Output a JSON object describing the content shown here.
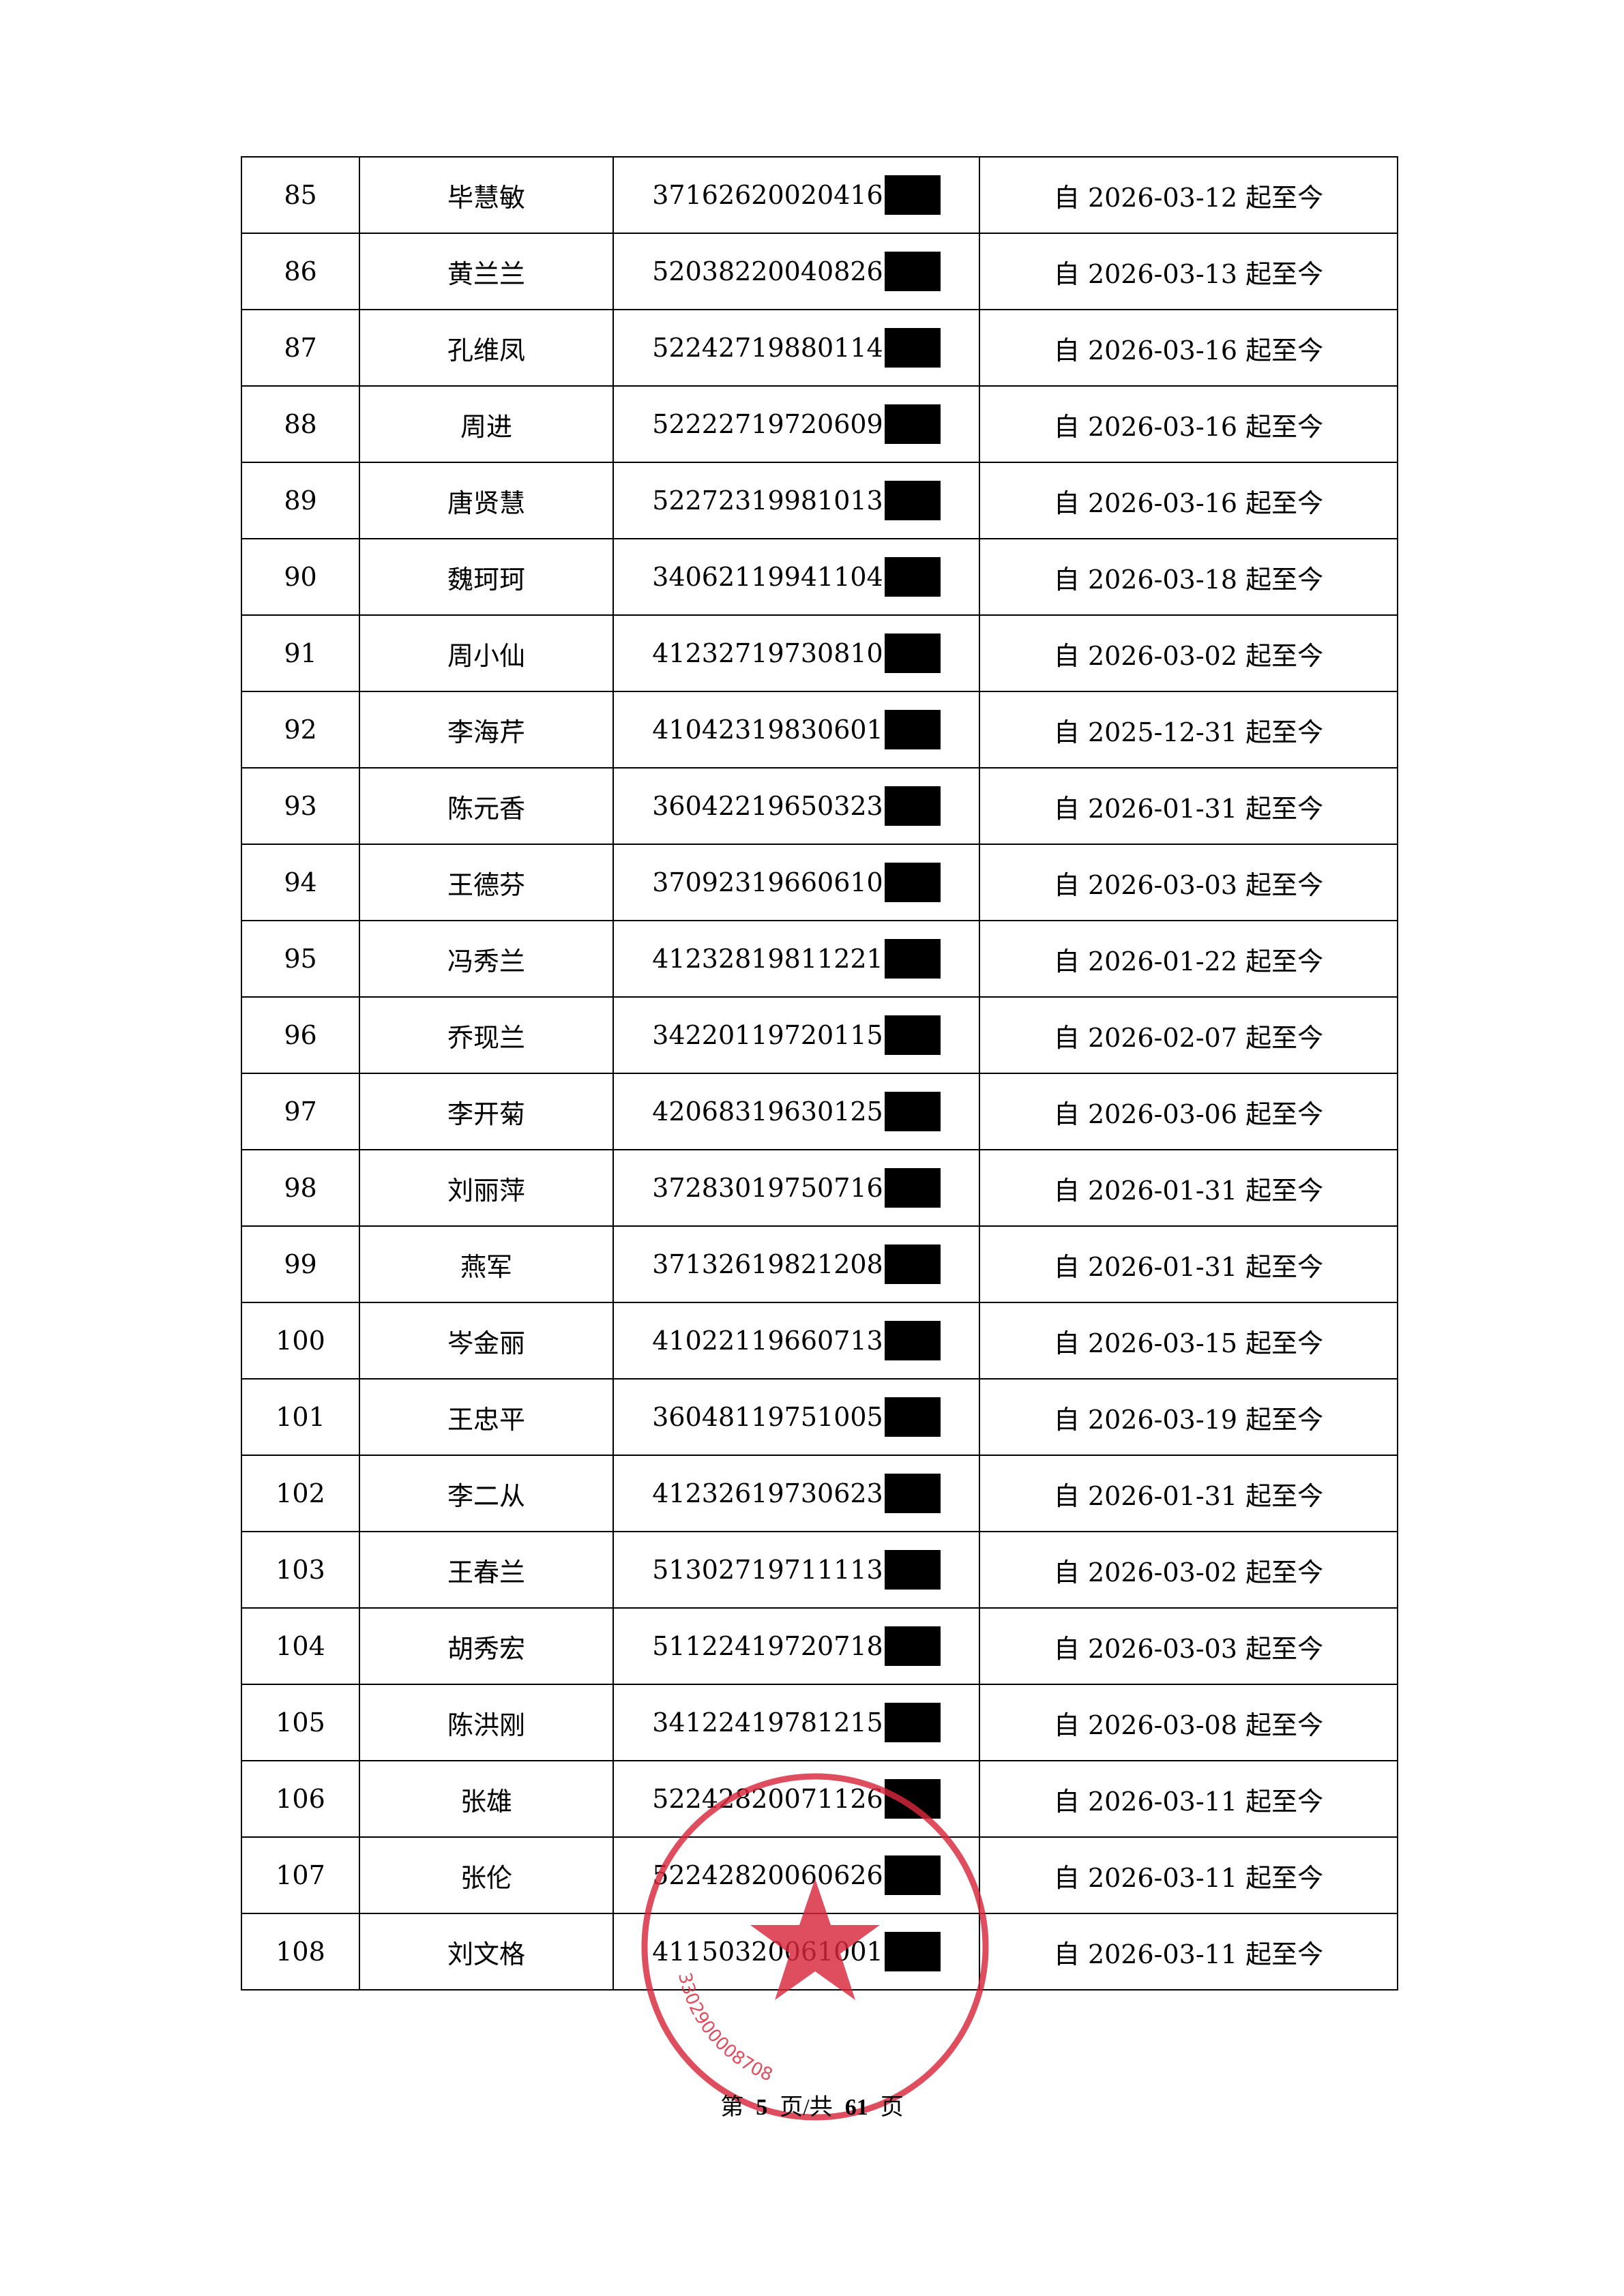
{
  "rows": [
    {
      "no": "85",
      "name": "毕慧敏",
      "id": "37162620020416",
      "period": "自 2026-03-12 起至今"
    },
    {
      "no": "86",
      "name": "黄兰兰",
      "id": "52038220040826",
      "period": "自 2026-03-13 起至今"
    },
    {
      "no": "87",
      "name": "孔维凤",
      "id": "52242719880114",
      "period": "自 2026-03-16 起至今"
    },
    {
      "no": "88",
      "name": "周进",
      "id": "52222719720609",
      "period": "自 2026-03-16 起至今"
    },
    {
      "no": "89",
      "name": "唐贤慧",
      "id": "52272319981013",
      "period": "自 2026-03-16 起至今"
    },
    {
      "no": "90",
      "name": "魏珂珂",
      "id": "34062119941104",
      "period": "自 2026-03-18 起至今"
    },
    {
      "no": "91",
      "name": "周小仙",
      "id": "41232719730810",
      "period": "自 2026-03-02 起至今"
    },
    {
      "no": "92",
      "name": "李海芹",
      "id": "41042319830601",
      "period": "自 2025-12-31 起至今"
    },
    {
      "no": "93",
      "name": "陈元香",
      "id": "36042219650323",
      "period": "自 2026-01-31 起至今"
    },
    {
      "no": "94",
      "name": "王德芬",
      "id": "37092319660610",
      "period": "自 2026-03-03 起至今"
    },
    {
      "no": "95",
      "name": "冯秀兰",
      "id": "41232819811221",
      "period": "自 2026-01-22 起至今"
    },
    {
      "no": "96",
      "name": "乔现兰",
      "id": "34220119720115",
      "period": "自 2026-02-07 起至今"
    },
    {
      "no": "97",
      "name": "李开菊",
      "id": "42068319630125",
      "period": "自 2026-03-06 起至今"
    },
    {
      "no": "98",
      "name": "刘丽萍",
      "id": "37283019750716",
      "period": "自 2026-01-31 起至今"
    },
    {
      "no": "99",
      "name": "燕军",
      "id": "37132619821208",
      "period": "自 2026-01-31 起至今"
    },
    {
      "no": "100",
      "name": "岑金丽",
      "id": "41022119660713",
      "period": "自 2026-03-15 起至今"
    },
    {
      "no": "101",
      "name": "王忠平",
      "id": "36048119751005",
      "period": "自 2026-03-19 起至今"
    },
    {
      "no": "102",
      "name": "李二从",
      "id": "41232619730623",
      "period": "自 2026-01-31 起至今"
    },
    {
      "no": "103",
      "name": "王春兰",
      "id": "51302719711113",
      "period": "自 2026-03-02 起至今"
    },
    {
      "no": "104",
      "name": "胡秀宏",
      "id": "51122419720718",
      "period": "自 2026-03-03 起至今"
    },
    {
      "no": "105",
      "name": "陈洪刚",
      "id": "34122419781215",
      "period": "自 2026-03-08 起至今"
    },
    {
      "no": "106",
      "name": "张雄",
      "id": "52242820071126",
      "period": "自 2026-03-11 起至今"
    },
    {
      "no": "107",
      "name": "张伦",
      "id": "52242820060626",
      "period": "自 2026-03-11 起至今"
    },
    {
      "no": "108",
      "name": "刘文格",
      "id": "41150320061001",
      "period": "自 2026-03-11 起至今"
    }
  ],
  "footer": {
    "prefix": "第",
    "current_page": "5",
    "middle": "页/共",
    "total_pages": "61",
    "suffix": "页"
  },
  "stamp": {
    "code": "3302900008708",
    "color": "#d8283c"
  }
}
